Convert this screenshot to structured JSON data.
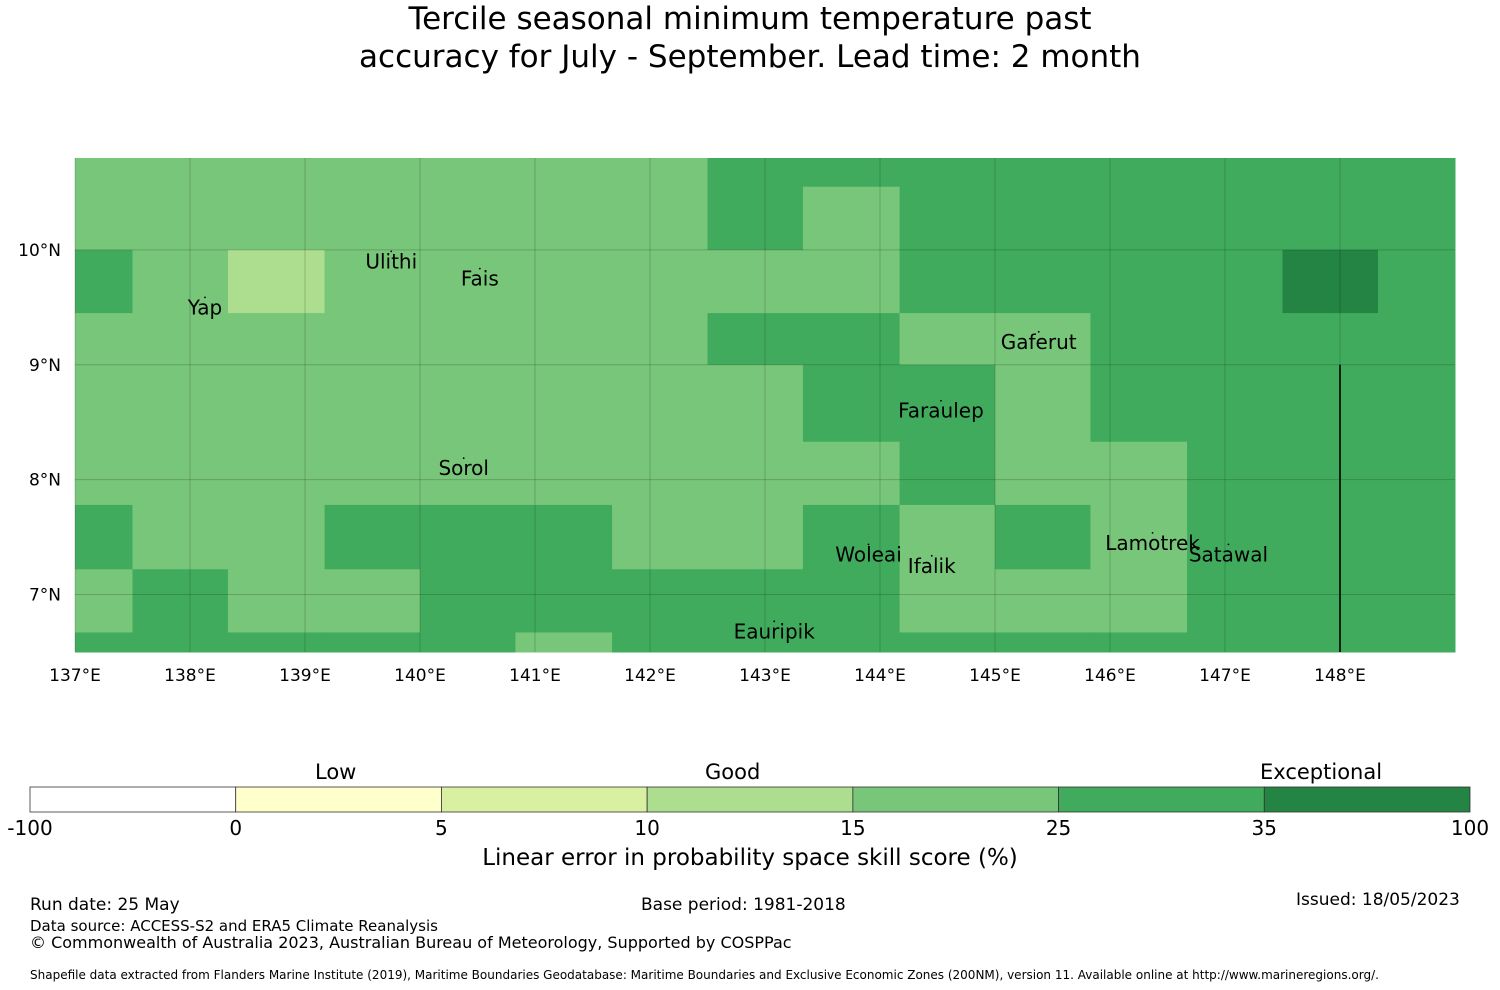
{
  "title": {
    "line1": "Tercile seasonal minimum temperature past",
    "line2": "accuracy for July - September. Lead time: 2 month"
  },
  "map": {
    "lon_range": [
      137.0,
      149.0
    ],
    "lat_range": [
      6.5,
      10.8
    ],
    "x_ticks": [
      {
        "value": 137,
        "label": "137°E"
      },
      {
        "value": 138,
        "label": "138°E"
      },
      {
        "value": 139,
        "label": "139°E"
      },
      {
        "value": 140,
        "label": "140°E"
      },
      {
        "value": 141,
        "label": "141°E"
      },
      {
        "value": 142,
        "label": "142°E"
      },
      {
        "value": 143,
        "label": "143°E"
      },
      {
        "value": 144,
        "label": "144°E"
      },
      {
        "value": 145,
        "label": "145°E"
      },
      {
        "value": 146,
        "label": "146°E"
      },
      {
        "value": 147,
        "label": "147°E"
      },
      {
        "value": 148,
        "label": "148°E"
      }
    ],
    "y_ticks": [
      {
        "value": 10,
        "label": "10°N"
      },
      {
        "value": 9,
        "label": "9°N"
      },
      {
        "value": 8,
        "label": "8°N"
      },
      {
        "value": 7,
        "label": "7°N"
      }
    ],
    "colors": [
      "#ffffff",
      "#ffffcc",
      "#d9f0a3",
      "#addd8e",
      "#78c679",
      "#41ab5d",
      "#238443"
    ],
    "cell_lon_edges": [
      137.0,
      137.5,
      138.33,
      139.17,
      140.0,
      140.83,
      141.67,
      142.5,
      143.33,
      144.17,
      145.0,
      145.83,
      146.67,
      147.5,
      148.33,
      149.0
    ],
    "cell_lat_edges": [
      10.8,
      10.55,
      10.0,
      9.45,
      9.0,
      8.33,
      7.78,
      7.22,
      6.67,
      6.5
    ],
    "cells": [
      [
        4,
        4,
        4,
        4,
        4,
        4,
        4,
        5,
        5,
        5,
        5,
        5,
        5,
        5,
        5
      ],
      [
        4,
        4,
        4,
        4,
        4,
        4,
        4,
        5,
        4,
        5,
        5,
        5,
        5,
        5,
        5
      ],
      [
        5,
        4,
        3,
        4,
        4,
        4,
        4,
        4,
        4,
        5,
        5,
        5,
        5,
        6,
        5
      ],
      [
        4,
        4,
        4,
        4,
        4,
        4,
        4,
        5,
        5,
        4,
        4,
        5,
        5,
        5,
        5
      ],
      [
        4,
        4,
        4,
        4,
        4,
        4,
        4,
        4,
        5,
        5,
        4,
        5,
        5,
        5,
        5
      ],
      [
        4,
        4,
        4,
        4,
        4,
        4,
        4,
        4,
        4,
        5,
        4,
        4,
        5,
        5,
        5
      ],
      [
        5,
        4,
        4,
        5,
        5,
        5,
        4,
        4,
        5,
        4,
        5,
        4,
        5,
        5,
        5
      ],
      [
        4,
        5,
        4,
        4,
        5,
        5,
        5,
        5,
        5,
        4,
        4,
        4,
        5,
        5,
        5
      ],
      [
        5,
        5,
        5,
        5,
        5,
        4,
        5,
        5,
        5,
        5,
        5,
        5,
        5,
        5,
        5
      ]
    ],
    "eez_boundary_lon": 148.0,
    "eez_boundary_lat_top": 9.0,
    "places": [
      {
        "name": "Ulithi",
        "lon": 139.75,
        "lat": 9.9
      },
      {
        "name": "Fais",
        "lon": 140.52,
        "lat": 9.75
      },
      {
        "name": "Yap",
        "lon": 138.13,
        "lat": 9.5
      },
      {
        "name": "Gaferut",
        "lon": 145.38,
        "lat": 9.2
      },
      {
        "name": "Faraulep",
        "lon": 144.53,
        "lat": 8.6
      },
      {
        "name": "Sorol",
        "lon": 140.38,
        "lat": 8.1
      },
      {
        "name": "Woleai",
        "lon": 143.9,
        "lat": 7.35
      },
      {
        "name": "Ifalik",
        "lon": 144.45,
        "lat": 7.25
      },
      {
        "name": "Lamotrek",
        "lon": 146.37,
        "lat": 7.45
      },
      {
        "name": "Satawal",
        "lon": 147.03,
        "lat": 7.35
      },
      {
        "name": "Eauripik",
        "lon": 143.08,
        "lat": 6.68
      }
    ]
  },
  "colorbar": {
    "category_labels": [
      "Low",
      "Good",
      "Exceptional"
    ],
    "bins": [
      {
        "from": "-100",
        "to": "0",
        "color": "#ffffff"
      },
      {
        "from": "0",
        "to": "5",
        "color": "#ffffcc"
      },
      {
        "from": "5",
        "to": "10",
        "color": "#d9f0a3"
      },
      {
        "from": "10",
        "to": "15",
        "color": "#addd8e"
      },
      {
        "from": "15",
        "to": "25",
        "color": "#78c679"
      },
      {
        "from": "25",
        "to": "35",
        "color": "#41ab5d"
      },
      {
        "from": "35",
        "to": "100",
        "color": "#238443"
      }
    ],
    "tick_labels": [
      "-100",
      "0",
      "5",
      "10",
      "15",
      "25",
      "35",
      "100"
    ],
    "label": "Linear error in probability space skill score (%)"
  },
  "footer": {
    "run_date": "Run date: 25 May",
    "base_period": "Base period: 1981-2018",
    "issued": "Issued: 18/05/2023",
    "data_source": "Data source: ACCESS-S2 and ERA5 Climate Reanalysis",
    "copyright": "© Commonwealth of Australia 2023, Australian Bureau of Meteorology, Supported by COSPPac",
    "shapefile": "Shapefile data extracted from Flanders Marine Institute (2019), Maritime Boundaries Geodatabase: Maritime Boundaries and Exclusive Economic Zones (200NM), version 11. Available online at http://www.marineregions.org/."
  }
}
